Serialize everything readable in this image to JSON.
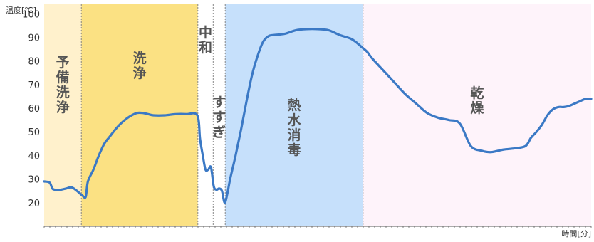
{
  "chart_data": {
    "type": "line",
    "ylabel": "温度[℃]",
    "xlabel": "時間[分]",
    "ylim": [
      10,
      104
    ],
    "xlim": [
      0,
      100
    ],
    "yticks": [
      20,
      30,
      40,
      50,
      60,
      70,
      80,
      90,
      100
    ],
    "grid": false,
    "phases": [
      {
        "label": "予備洗浄",
        "x0": 0,
        "x1": 6.8,
        "color": "#fff1cc",
        "layout": "vertical-2col"
      },
      {
        "label": "洗浄",
        "x0": 6.8,
        "x1": 28.1,
        "color": "#fbe183",
        "layout": "vertical"
      },
      {
        "label": "中和",
        "x0": 28.1,
        "x1": 30.9,
        "color": "#ffffff",
        "layout": "vertical"
      },
      {
        "label": "すすぎ",
        "x0": 30.9,
        "x1": 33.1,
        "color": "#ffffff",
        "layout": "vertical"
      },
      {
        "label": "熱水消毒",
        "x0": 33.1,
        "x1": 58.3,
        "color": "#c6e0fb",
        "layout": "vertical"
      },
      {
        "label": "乾燥",
        "x0": 58.3,
        "x1": 100,
        "color": "#fef3fa",
        "layout": "vertical"
      }
    ],
    "series": [
      {
        "color": "#3b79c5",
        "x": [
          0,
          1,
          1.5,
          2,
          3,
          4,
          5,
          6,
          7,
          7.6,
          8,
          9,
          10,
          11,
          12,
          13,
          14,
          15,
          16,
          17,
          18,
          19,
          20,
          22,
          24,
          26,
          28,
          28.5,
          29,
          29.5,
          30,
          30.5,
          31,
          31.5,
          32,
          32.5,
          33,
          33.5,
          34,
          35,
          36,
          37,
          38,
          39,
          40,
          41,
          42,
          44,
          46,
          48,
          50,
          52,
          54,
          56,
          57,
          58,
          59,
          60,
          62,
          64,
          66,
          68,
          70,
          72,
          74,
          76,
          78,
          80,
          81,
          82,
          84,
          86,
          88,
          89,
          90,
          91,
          92,
          93,
          94,
          95,
          96,
          97,
          98,
          99,
          100
        ],
        "y": [
          29,
          28.5,
          26,
          25.5,
          25.5,
          26,
          26.5,
          25,
          23,
          22.5,
          29,
          34,
          40,
          45,
          48,
          51,
          53.5,
          55.5,
          57,
          58,
          58,
          57.5,
          57,
          57,
          57.5,
          57.5,
          57,
          47,
          40,
          34,
          34,
          35,
          27,
          25.5,
          26,
          25,
          20,
          24,
          30,
          40,
          51,
          63,
          74,
          82,
          88,
          90.5,
          91,
          91.5,
          93,
          93.5,
          93.5,
          93,
          91,
          89.5,
          88,
          86,
          84,
          81,
          76,
          71,
          66,
          62,
          58,
          56,
          55,
          53.5,
          44,
          42,
          41.5,
          41.5,
          42.5,
          43,
          44,
          47.5,
          50,
          53,
          57,
          59.5,
          60.5,
          60.5,
          61,
          62,
          63,
          64,
          64
        ]
      }
    ]
  }
}
